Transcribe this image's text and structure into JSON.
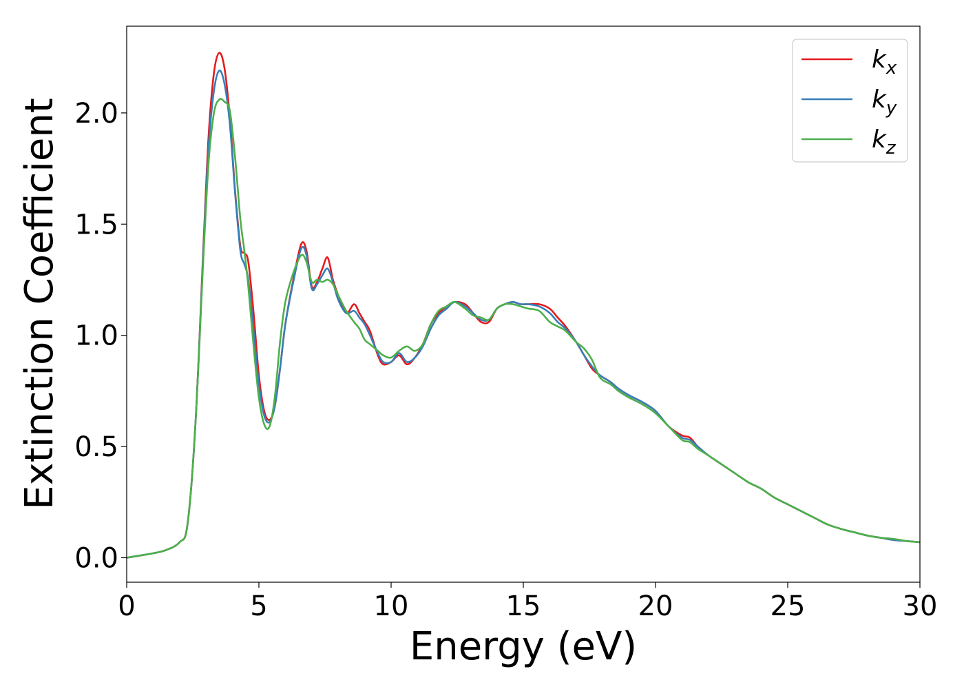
{
  "chart_data": {
    "type": "line",
    "title": "",
    "xlabel": "Energy (eV)",
    "ylabel": "Extinction Coefficient",
    "xlim": [
      0,
      30
    ],
    "ylim": [
      -0.11,
      2.39
    ],
    "xticks": [
      0,
      5,
      10,
      15,
      20,
      25,
      30
    ],
    "yticks": [
      0.0,
      0.5,
      1.0,
      1.5,
      2.0
    ],
    "xtick_labels": [
      "0",
      "5",
      "10",
      "15",
      "20",
      "25",
      "30"
    ],
    "ytick_labels": [
      "0.0",
      "0.5",
      "1.0",
      "1.5",
      "2.0"
    ],
    "grid": false,
    "legend_position": "top-right",
    "series": [
      {
        "name": "k_x",
        "label_base": "k",
        "label_sub": "x",
        "color": "#e41a1c",
        "x": [
          0,
          0.5,
          1,
          1.5,
          2,
          2.3,
          2.6,
          2.9,
          3.1,
          3.3,
          3.5,
          3.7,
          3.9,
          4.1,
          4.3,
          4.45,
          4.6,
          4.8,
          5.0,
          5.2,
          5.4,
          5.6,
          5.8,
          6.0,
          6.3,
          6.6,
          6.8,
          7.0,
          7.2,
          7.4,
          7.6,
          7.8,
          8.0,
          8.3,
          8.6,
          8.8,
          9.0,
          9.2,
          9.5,
          9.7,
          10.0,
          10.3,
          10.6,
          10.9,
          11.2,
          11.5,
          11.8,
          12.1,
          12.4,
          12.8,
          13.1,
          13.4,
          13.7,
          14.0,
          14.3,
          14.6,
          14.9,
          15.2,
          15.6,
          16.0,
          16.3,
          16.6,
          17.0,
          17.3,
          17.6,
          17.9,
          18.3,
          18.6,
          19.0,
          19.5,
          20.0,
          20.5,
          21.0,
          21.3,
          21.6,
          22.0,
          22.5,
          23.0,
          23.5,
          24.0,
          24.5,
          25.0,
          25.5,
          26.0,
          26.5,
          27.0,
          27.5,
          28.0,
          28.5,
          29.0,
          29.5,
          30.0
        ],
        "y": [
          0.0,
          0.01,
          0.02,
          0.035,
          0.07,
          0.15,
          0.6,
          1.4,
          1.9,
          2.18,
          2.27,
          2.2,
          1.98,
          1.65,
          1.4,
          1.37,
          1.33,
          1.1,
          0.82,
          0.66,
          0.62,
          0.68,
          0.85,
          1.05,
          1.25,
          1.41,
          1.38,
          1.22,
          1.24,
          1.3,
          1.35,
          1.25,
          1.18,
          1.1,
          1.14,
          1.1,
          1.06,
          1.02,
          0.91,
          0.87,
          0.88,
          0.91,
          0.87,
          0.9,
          0.96,
          1.05,
          1.1,
          1.13,
          1.15,
          1.14,
          1.1,
          1.06,
          1.06,
          1.12,
          1.14,
          1.15,
          1.14,
          1.14,
          1.14,
          1.12,
          1.08,
          1.04,
          0.97,
          0.91,
          0.85,
          0.82,
          0.79,
          0.76,
          0.73,
          0.7,
          0.66,
          0.59,
          0.55,
          0.54,
          0.5,
          0.46,
          0.42,
          0.38,
          0.34,
          0.31,
          0.27,
          0.24,
          0.21,
          0.18,
          0.15,
          0.13,
          0.115,
          0.1,
          0.09,
          0.08,
          0.075,
          0.07
        ]
      },
      {
        "name": "k_y",
        "label_base": "k",
        "label_sub": "y",
        "color": "#377eb8",
        "x": [
          0,
          0.5,
          1,
          1.5,
          2,
          2.3,
          2.6,
          2.9,
          3.1,
          3.3,
          3.5,
          3.7,
          3.9,
          4.1,
          4.3,
          4.45,
          4.6,
          4.8,
          5.0,
          5.2,
          5.4,
          5.6,
          5.8,
          6.0,
          6.3,
          6.6,
          6.8,
          7.0,
          7.2,
          7.4,
          7.6,
          7.8,
          8.0,
          8.3,
          8.6,
          8.8,
          9.0,
          9.2,
          9.5,
          9.7,
          10.0,
          10.3,
          10.6,
          10.9,
          11.2,
          11.5,
          11.8,
          12.1,
          12.4,
          12.8,
          13.1,
          13.4,
          13.7,
          14.0,
          14.3,
          14.6,
          14.9,
          15.2,
          15.6,
          16.0,
          16.3,
          16.6,
          17.0,
          17.3,
          17.6,
          17.9,
          18.3,
          18.6,
          19.0,
          19.5,
          20.0,
          20.5,
          21.0,
          21.3,
          21.6,
          22.0,
          22.5,
          23.0,
          23.5,
          24.0,
          24.5,
          25.0,
          25.5,
          26.0,
          26.5,
          27.0,
          27.5,
          28.0,
          28.5,
          29.0,
          29.5,
          30.0
        ],
        "y": [
          0.0,
          0.01,
          0.02,
          0.035,
          0.07,
          0.15,
          0.6,
          1.38,
          1.85,
          2.1,
          2.19,
          2.13,
          1.95,
          1.64,
          1.38,
          1.32,
          1.25,
          1.02,
          0.78,
          0.64,
          0.61,
          0.68,
          0.85,
          1.05,
          1.24,
          1.39,
          1.36,
          1.21,
          1.23,
          1.27,
          1.3,
          1.24,
          1.16,
          1.1,
          1.11,
          1.08,
          1.05,
          1.0,
          0.92,
          0.88,
          0.88,
          0.92,
          0.88,
          0.9,
          0.95,
          1.03,
          1.09,
          1.12,
          1.15,
          1.13,
          1.1,
          1.07,
          1.07,
          1.12,
          1.14,
          1.15,
          1.14,
          1.14,
          1.13,
          1.1,
          1.06,
          1.03,
          0.97,
          0.91,
          0.86,
          0.82,
          0.79,
          0.76,
          0.73,
          0.7,
          0.66,
          0.59,
          0.54,
          0.53,
          0.5,
          0.46,
          0.42,
          0.38,
          0.34,
          0.31,
          0.27,
          0.24,
          0.21,
          0.18,
          0.15,
          0.13,
          0.115,
          0.1,
          0.09,
          0.08,
          0.075,
          0.07
        ]
      },
      {
        "name": "k_z",
        "label_base": "k",
        "label_sub": "z",
        "color": "#4daf4a",
        "x": [
          0,
          0.5,
          1,
          1.5,
          2,
          2.3,
          2.6,
          2.9,
          3.1,
          3.3,
          3.5,
          3.7,
          3.9,
          4.1,
          4.3,
          4.45,
          4.6,
          4.8,
          5.0,
          5.2,
          5.4,
          5.6,
          5.8,
          6.0,
          6.3,
          6.6,
          6.8,
          7.0,
          7.2,
          7.4,
          7.6,
          7.8,
          8.0,
          8.3,
          8.6,
          8.8,
          9.0,
          9.2,
          9.5,
          9.7,
          10.0,
          10.3,
          10.6,
          10.9,
          11.2,
          11.5,
          11.8,
          12.1,
          12.4,
          12.8,
          13.1,
          13.4,
          13.7,
          14.0,
          14.3,
          14.6,
          14.9,
          15.2,
          15.6,
          16.0,
          16.3,
          16.6,
          17.0,
          17.3,
          17.6,
          17.9,
          18.3,
          18.6,
          19.0,
          19.5,
          20.0,
          20.5,
          21.0,
          21.3,
          21.6,
          22.0,
          22.5,
          23.0,
          23.5,
          24.0,
          24.5,
          25.0,
          25.5,
          26.0,
          26.5,
          27.0,
          27.5,
          28.0,
          28.5,
          29.0,
          29.5,
          30.0
        ],
        "y": [
          0.0,
          0.01,
          0.02,
          0.035,
          0.07,
          0.15,
          0.6,
          1.35,
          1.78,
          2.0,
          2.06,
          2.05,
          2.01,
          1.8,
          1.52,
          1.38,
          1.22,
          0.95,
          0.72,
          0.6,
          0.59,
          0.72,
          0.97,
          1.15,
          1.28,
          1.36,
          1.33,
          1.24,
          1.25,
          1.24,
          1.25,
          1.23,
          1.18,
          1.11,
          1.06,
          1.03,
          0.98,
          0.96,
          0.93,
          0.91,
          0.9,
          0.93,
          0.95,
          0.93,
          0.96,
          1.05,
          1.11,
          1.13,
          1.15,
          1.12,
          1.09,
          1.08,
          1.07,
          1.12,
          1.14,
          1.14,
          1.13,
          1.12,
          1.11,
          1.06,
          1.04,
          1.02,
          0.97,
          0.94,
          0.89,
          0.81,
          0.78,
          0.75,
          0.72,
          0.69,
          0.65,
          0.59,
          0.53,
          0.52,
          0.49,
          0.46,
          0.42,
          0.38,
          0.34,
          0.31,
          0.27,
          0.24,
          0.21,
          0.18,
          0.15,
          0.13,
          0.115,
          0.1,
          0.09,
          0.085,
          0.075,
          0.07
        ]
      }
    ]
  }
}
